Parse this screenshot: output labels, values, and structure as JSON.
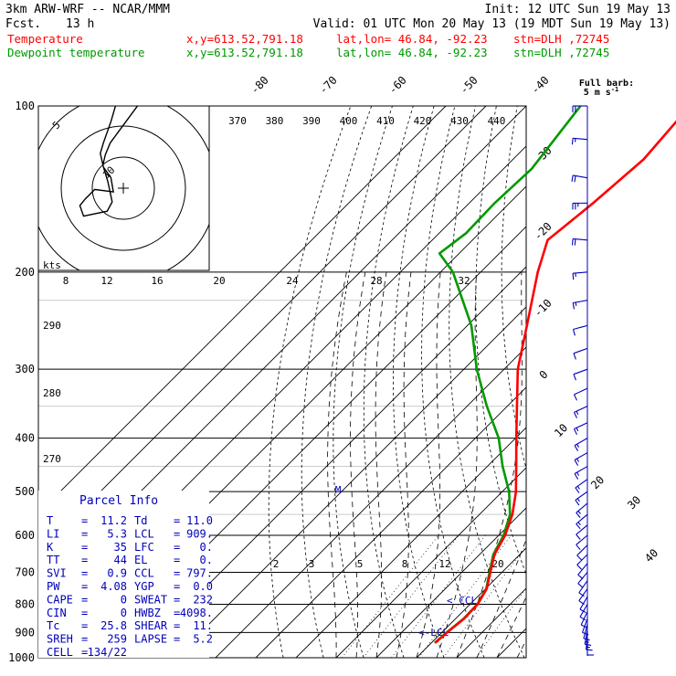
{
  "header": {
    "model": "3km ARW-WRF -- NCAR/MMM",
    "fcst_label": "Fcst.",
    "fcst_value": "13 h",
    "init": "Init: 12 UTC Sun 19 May 13",
    "valid": "Valid: 01 UTC Mon 20 May 13 (19 MDT Sun 19 May 13)",
    "rows": [
      {
        "name": "Temperature",
        "xy": "x,y=613.52,791.18",
        "latlon": "lat,lon= 46.84, -92.23",
        "stn": "stn=DLH ,72745",
        "color": "#ff0000"
      },
      {
        "name": "Dewpoint temperature",
        "xy": "x,y=613.52,791.18",
        "latlon": "lat,lon= 46.84, -92.23",
        "stn": "stn=DLH ,72745",
        "color": "#009900"
      }
    ]
  },
  "colors": {
    "temperature": "#ff0000",
    "dewpoint": "#009900",
    "barbs": "#0000bb",
    "grid": "#000000"
  },
  "barb_legend": {
    "title": "Full barb:",
    "value": "5 m s",
    "unit_exp": "-1"
  },
  "hodograph": {
    "unit": "kts",
    "ring_labels": [
      "5",
      "10"
    ],
    "hodo_path": [
      [
        -0.9,
        14.5
      ],
      [
        -2.0,
        10.7
      ],
      [
        -3.2,
        7.3
      ],
      [
        -3.7,
        5.6
      ],
      [
        -3.2,
        3.4
      ],
      [
        -2.0,
        1.7
      ],
      [
        -1.6,
        -0.6
      ],
      [
        -4.6,
        -0.2
      ],
      [
        -6.1,
        -1.7
      ],
      [
        -7.0,
        -2.8
      ],
      [
        -6.4,
        -4.5
      ],
      [
        -2.6,
        -3.7
      ],
      [
        -1.8,
        -2.2
      ],
      [
        -2.5,
        1.1
      ],
      [
        -3.3,
        3.7
      ],
      [
        -2.9,
        5.4
      ],
      [
        -2.1,
        7.3
      ],
      [
        3.5,
        14.9
      ]
    ]
  },
  "chart_data": {
    "type": "line",
    "diagram": "skew-T log-P",
    "y_axis": {
      "scale": "log",
      "unit": "hPa",
      "range": [
        1000,
        100
      ],
      "ticks": [
        100,
        200,
        300,
        400,
        500,
        600,
        700,
        800,
        900,
        1000
      ]
    },
    "isotherm_labels": [
      "-80",
      "-70",
      "-60",
      "-50",
      "-40",
      "-30",
      "-20",
      "-10",
      "0",
      "10",
      "20",
      "30",
      "40"
    ],
    "theta_e_labels": [
      "370",
      "380",
      "390",
      "400",
      "410",
      "420",
      "430",
      "440"
    ],
    "theta_labels": [
      "290",
      "280",
      "270"
    ],
    "mixing_ratio_row1": [
      "8",
      "12",
      "16",
      "20",
      "24",
      "28",
      "32"
    ],
    "mixing_ratio_row2": [
      "2",
      "3",
      "5",
      "8",
      "12",
      "20"
    ],
    "annotations": {
      "lfc": "M",
      "ccl": "< CCL",
      "lcl": "<-LCL"
    },
    "series": [
      {
        "name": "Temperature",
        "color": "#ff0000",
        "points": [
          [
            100,
            -59.3
          ],
          [
            125,
            -57.5
          ],
          [
            150,
            -59.2
          ],
          [
            175,
            -61.3
          ],
          [
            200,
            -55.8
          ],
          [
            250,
            -45.2
          ],
          [
            300,
            -36.6
          ],
          [
            350,
            -27.6
          ],
          [
            400,
            -19.8
          ],
          [
            450,
            -12.8
          ],
          [
            500,
            -6.6
          ],
          [
            550,
            -1.8
          ],
          [
            600,
            1.6
          ],
          [
            650,
            3.7
          ],
          [
            700,
            7.1
          ],
          [
            750,
            10.3
          ],
          [
            800,
            11.9
          ],
          [
            850,
            12.1
          ],
          [
            900,
            11.3
          ],
          [
            940,
            10.9
          ]
        ]
      },
      {
        "name": "Dewpoint temperature",
        "color": "#009900",
        "points": [
          [
            100,
            -86.5
          ],
          [
            130,
            -83.0
          ],
          [
            150,
            -83.7
          ],
          [
            170,
            -83.3
          ],
          [
            185,
            -84.9
          ],
          [
            200,
            -76.9
          ],
          [
            250,
            -59.0
          ],
          [
            300,
            -46.8
          ],
          [
            350,
            -35.1
          ],
          [
            400,
            -24.2
          ],
          [
            450,
            -16.2
          ],
          [
            500,
            -8.3
          ],
          [
            550,
            -2.4
          ],
          [
            600,
            1.2
          ],
          [
            650,
            3.4
          ],
          [
            700,
            6.9
          ],
          [
            750,
            10.2
          ],
          [
            800,
            11.8
          ],
          [
            850,
            12.0
          ],
          [
            900,
            11.2
          ],
          [
            940,
            10.8
          ]
        ]
      }
    ]
  },
  "parcel_info": {
    "title": "Parcel Info",
    "rows": [
      [
        "T",
        "=",
        "11.2",
        "Td",
        "=",
        "11.0"
      ],
      [
        "LI",
        "=",
        "5.3",
        "LCL",
        "=",
        "909."
      ],
      [
        "K",
        "=",
        "35",
        "LFC",
        "=",
        "0."
      ],
      [
        "TT",
        "=",
        "44",
        "EL",
        "=",
        "0."
      ],
      [
        "SVI",
        "=",
        "0.9",
        "CCL",
        "=",
        "797."
      ],
      [
        "PW",
        "=",
        "4.08",
        "YGP",
        "=",
        "0.0"
      ],
      [
        "CAPE",
        "=",
        "0",
        "SWEAT",
        "=",
        "232"
      ],
      [
        "CIN",
        "=",
        "0",
        "HWBZ",
        "=",
        "4098."
      ],
      [
        "Tc",
        "=",
        "25.8",
        "SHEAR",
        "=",
        "11."
      ],
      [
        "SREH",
        "=",
        "259",
        "LAPSE",
        "=",
        "5.2"
      ],
      [
        "CELL",
        "=",
        "134/22",
        "",
        "",
        ""
      ]
    ]
  },
  "wind_profile": [
    {
      "p": 100,
      "spd": 20,
      "dir": 270
    },
    {
      "p": 115,
      "spd": 15,
      "dir": 275
    },
    {
      "p": 135,
      "spd": 20,
      "dir": 280
    },
    {
      "p": 150,
      "spd": 25,
      "dir": 270
    },
    {
      "p": 175,
      "spd": 20,
      "dir": 275
    },
    {
      "p": 200,
      "spd": 15,
      "dir": 265
    },
    {
      "p": 225,
      "spd": 15,
      "dir": 260
    },
    {
      "p": 250,
      "spd": 10,
      "dir": 255
    },
    {
      "p": 275,
      "spd": 10,
      "dir": 250
    },
    {
      "p": 300,
      "spd": 10,
      "dir": 250
    },
    {
      "p": 325,
      "spd": 10,
      "dir": 245
    },
    {
      "p": 350,
      "spd": 15,
      "dir": 245
    },
    {
      "p": 375,
      "spd": 15,
      "dir": 245
    },
    {
      "p": 400,
      "spd": 15,
      "dir": 240
    },
    {
      "p": 425,
      "spd": 15,
      "dir": 240
    },
    {
      "p": 450,
      "spd": 15,
      "dir": 240
    },
    {
      "p": 475,
      "spd": 15,
      "dir": 235
    },
    {
      "p": 500,
      "spd": 15,
      "dir": 235
    },
    {
      "p": 525,
      "spd": 15,
      "dir": 230
    },
    {
      "p": 550,
      "spd": 15,
      "dir": 230
    },
    {
      "p": 575,
      "spd": 10,
      "dir": 230
    },
    {
      "p": 600,
      "spd": 10,
      "dir": 230
    },
    {
      "p": 625,
      "spd": 10,
      "dir": 225
    },
    {
      "p": 650,
      "spd": 10,
      "dir": 225
    },
    {
      "p": 675,
      "spd": 10,
      "dir": 220
    },
    {
      "p": 700,
      "spd": 10,
      "dir": 220
    },
    {
      "p": 725,
      "spd": 10,
      "dir": 215
    },
    {
      "p": 750,
      "spd": 10,
      "dir": 215
    },
    {
      "p": 775,
      "spd": 10,
      "dir": 210
    },
    {
      "p": 800,
      "spd": 10,
      "dir": 210
    },
    {
      "p": 825,
      "spd": 10,
      "dir": 205
    },
    {
      "p": 850,
      "spd": 10,
      "dir": 200
    },
    {
      "p": 870,
      "spd": 10,
      "dir": 195
    },
    {
      "p": 890,
      "spd": 15,
      "dir": 190
    },
    {
      "p": 910,
      "spd": 15,
      "dir": 185
    },
    {
      "p": 930,
      "spd": 10,
      "dir": 180
    }
  ]
}
